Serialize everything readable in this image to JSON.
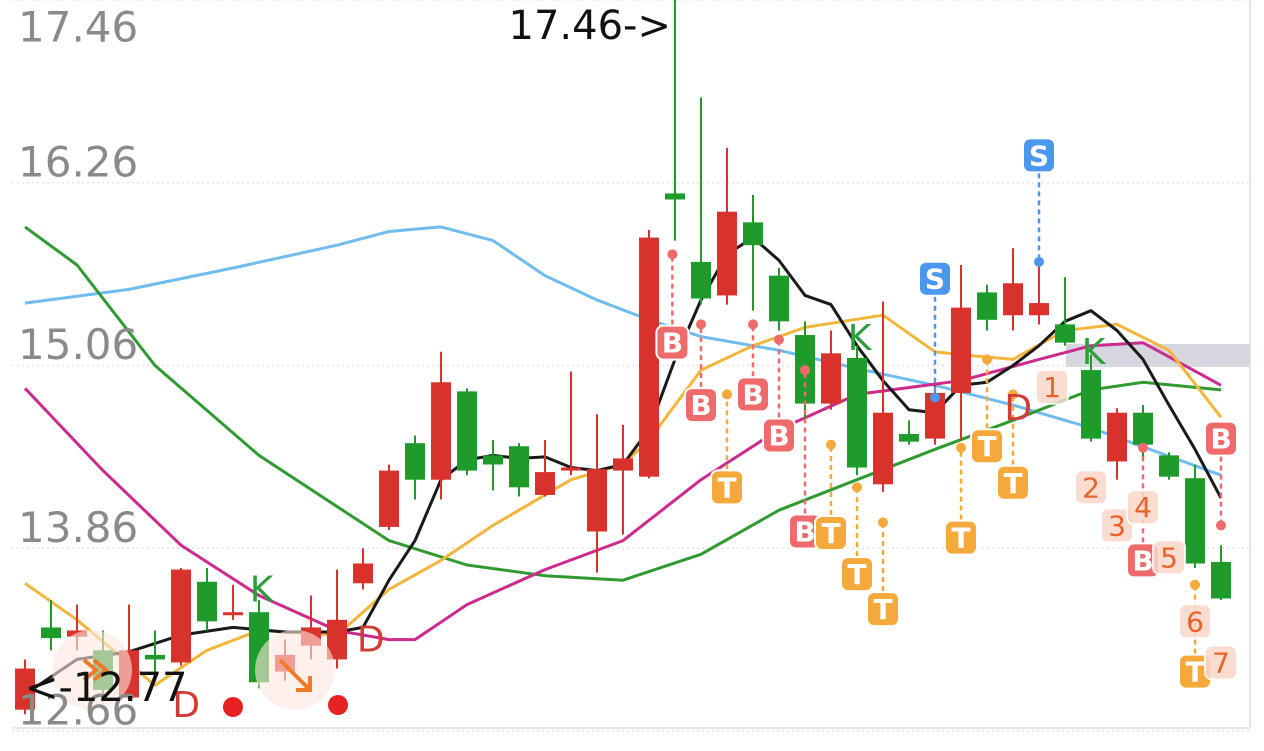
{
  "chart_data": {
    "type": "candlestick",
    "ylim": [
      12.66,
      17.46
    ],
    "yticks": [
      17.46,
      16.26,
      15.06,
      13.86,
      12.66
    ],
    "grid": true,
    "up_color": "#d9312b",
    "down_color": "#1e9b2a",
    "open": [
      12.8,
      13.34,
      13.28,
      13.19,
      12.88,
      13.16,
      13.11,
      13.64,
      13.42,
      13.44,
      13.05,
      13.22,
      13.13,
      13.63,
      14.0,
      14.55,
      14.31,
      14.89,
      14.47,
      14.53,
      14.21,
      14.37,
      13.97,
      14.37,
      14.33,
      16.19,
      15.74,
      15.52,
      16.0,
      15.65,
      15.26,
      14.81,
      15.11,
      14.28,
      14.61,
      14.58,
      14.88,
      15.54,
      15.39,
      15.39,
      15.33,
      15.03,
      14.43,
      14.75,
      14.47,
      14.32,
      13.77
    ],
    "high": [
      13.13,
      13.52,
      13.49,
      13.32,
      13.49,
      13.32,
      13.73,
      13.73,
      13.62,
      13.52,
      13.26,
      13.55,
      13.72,
      13.86,
      14.41,
      14.6,
      15.15,
      14.91,
      14.57,
      14.55,
      14.57,
      15.02,
      14.74,
      14.67,
      15.95,
      17.46,
      16.82,
      16.49,
      16.18,
      15.7,
      15.35,
      15.29,
      15.19,
      15.48,
      14.7,
      14.96,
      15.72,
      15.59,
      15.83,
      15.74,
      15.64,
      15.13,
      14.78,
      14.8,
      14.49,
      14.41,
      13.88
    ],
    "low": [
      12.77,
      13.19,
      13.19,
      12.86,
      12.86,
      12.99,
      13.09,
      13.32,
      13.39,
      12.94,
      12.99,
      13.13,
      13.07,
      13.59,
      13.98,
      14.18,
      14.18,
      14.34,
      14.24,
      14.2,
      14.2,
      14.34,
      13.7,
      13.95,
      14.32,
      15.88,
      15.46,
      15.46,
      15.42,
      15.29,
      14.7,
      14.77,
      14.34,
      14.23,
      14.54,
      14.54,
      14.57,
      15.29,
      15.29,
      15.33,
      15.19,
      14.56,
      14.31,
      14.44,
      14.31,
      13.73,
      13.52
    ],
    "close": [
      13.07,
      13.27,
      13.32,
      12.93,
      13.19,
      13.13,
      13.72,
      13.38,
      13.44,
      12.98,
      13.16,
      13.34,
      13.39,
      13.76,
      14.37,
      14.31,
      14.95,
      14.37,
      14.41,
      14.26,
      14.36,
      14.39,
      14.38,
      14.45,
      15.9,
      16.15,
      15.5,
      16.07,
      15.85,
      15.35,
      14.81,
      15.14,
      14.39,
      14.75,
      14.56,
      14.88,
      15.44,
      15.36,
      15.6,
      15.47,
      15.21,
      14.58,
      14.75,
      14.54,
      14.33,
      13.76,
      13.53
    ],
    "lines": [
      {
        "color": "#6fbdf0",
        "x": [
          0,
          4,
          8,
          12,
          14,
          16,
          18,
          20,
          22,
          24,
          26,
          29,
          32,
          35,
          38,
          41,
          46
        ],
        "values": [
          15.47,
          15.56,
          15.7,
          15.85,
          15.94,
          15.97,
          15.88,
          15.65,
          15.49,
          15.36,
          15.25,
          15.16,
          15.04,
          14.93,
          14.8,
          14.65,
          14.34
        ]
      },
      {
        "color": "#2f9a2f",
        "x": [
          0,
          2,
          5,
          9,
          14,
          17,
          20,
          23,
          26,
          29,
          32,
          35,
          38,
          41,
          43,
          46
        ],
        "values": [
          15.97,
          15.72,
          15.06,
          14.47,
          13.91,
          13.75,
          13.68,
          13.65,
          13.82,
          14.11,
          14.31,
          14.51,
          14.7,
          14.9,
          14.95,
          14.9
        ]
      },
      {
        "color": "#cc2a8e",
        "x": [
          0,
          3,
          6,
          9,
          12,
          14,
          15,
          17,
          20,
          23,
          26,
          29,
          32,
          36,
          39,
          41,
          43,
          46
        ],
        "values": [
          14.91,
          14.37,
          13.88,
          13.55,
          13.32,
          13.26,
          13.26,
          13.49,
          13.72,
          13.91,
          14.31,
          14.64,
          14.87,
          14.96,
          15.1,
          15.19,
          15.21,
          14.93
        ]
      },
      {
        "color": "#f2b63a",
        "x": [
          0,
          2,
          5,
          7,
          9,
          12,
          14,
          16,
          18,
          21,
          23,
          24,
          26,
          28,
          30,
          33,
          35,
          36,
          38,
          40,
          42,
          44,
          46
        ],
        "values": [
          13.63,
          13.39,
          12.96,
          13.19,
          13.32,
          13.29,
          13.59,
          13.78,
          14.01,
          14.31,
          14.41,
          14.57,
          15.03,
          15.19,
          15.31,
          15.39,
          15.15,
          15.13,
          15.1,
          15.29,
          15.33,
          15.16,
          14.72
        ]
      },
      {
        "color": "#1a1a1a",
        "x": [
          0,
          2,
          4,
          6,
          8,
          10,
          12,
          13,
          14,
          15,
          16,
          17,
          18,
          19,
          20,
          21,
          22,
          23,
          24,
          25,
          26,
          27,
          28,
          29,
          30,
          31,
          32,
          33,
          34,
          35,
          36,
          37,
          38,
          39,
          40,
          41,
          42,
          43,
          44,
          45,
          46
        ],
        "values": [
          12.9,
          13.13,
          13.18,
          13.29,
          13.34,
          13.31,
          13.31,
          13.34,
          13.65,
          13.91,
          14.31,
          14.44,
          14.47,
          14.45,
          14.46,
          14.39,
          14.37,
          14.41,
          14.64,
          15.1,
          15.49,
          15.79,
          15.9,
          15.75,
          15.52,
          15.46,
          15.19,
          14.96,
          14.77,
          14.75,
          14.93,
          14.95,
          15.06,
          15.19,
          15.35,
          15.42,
          15.29,
          15.1,
          14.8,
          14.51,
          14.19
        ]
      }
    ],
    "markers": [
      {
        "text": "B",
        "x": 24.9,
        "price": 15.21,
        "stem": 15.79,
        "fill": "#ef6b6b",
        "color": "#ffffff"
      },
      {
        "text": "B",
        "x": 26,
        "price": 14.8,
        "stem": 15.33,
        "fill": "#ef6b6b",
        "color": "#ffffff"
      },
      {
        "text": "B",
        "x": 28,
        "price": 14.87,
        "stem": 15.33,
        "fill": "#ef6b6b",
        "color": "#ffffff"
      },
      {
        "text": "B",
        "x": 29,
        "price": 14.6,
        "stem": 15.23,
        "fill": "#ef6b6b",
        "color": "#ffffff"
      },
      {
        "text": "B",
        "x": 30,
        "price": 13.97,
        "stem": 15.03,
        "fill": "#ef6b6b",
        "color": "#ffffff"
      },
      {
        "text": "T",
        "x": 27,
        "price": 14.26,
        "stem": 14.87,
        "fill": "#f6a93b",
        "color": "#ffffff"
      },
      {
        "text": "T",
        "x": 31,
        "price": 13.96,
        "stem": 14.54,
        "fill": "#f6a93b",
        "color": "#ffffff"
      },
      {
        "text": "T",
        "x": 32,
        "price": 13.69,
        "stem": 14.26,
        "fill": "#f6a93b",
        "color": "#ffffff"
      },
      {
        "text": "T",
        "x": 33,
        "price": 13.46,
        "stem": 14.03,
        "fill": "#f6a93b",
        "color": "#ffffff"
      },
      {
        "text": "T",
        "x": 36,
        "price": 13.93,
        "stem": 14.52,
        "fill": "#f6a93b",
        "color": "#ffffff"
      },
      {
        "text": "T",
        "x": 37,
        "price": 14.53,
        "stem": 15.1,
        "fill": "#f6a93b",
        "color": "#ffffff"
      },
      {
        "text": "T",
        "x": 38,
        "price": 14.29,
        "stem": 14.87,
        "fill": "#f6a93b",
        "color": "#ffffff"
      },
      {
        "text": "T",
        "x": 45,
        "price": 13.05,
        "stem": 13.62,
        "fill": "#f6a93b",
        "color": "#ffffff"
      },
      {
        "text": "S",
        "x": 35,
        "price": 15.63,
        "stem": 14.85,
        "fill": "#4b97f0",
        "color": "#ffffff"
      },
      {
        "text": "S",
        "x": 39,
        "price": 16.44,
        "stem": 15.74,
        "fill": "#4b97f0",
        "color": "#ffffff"
      },
      {
        "text": "B",
        "x": 46,
        "price": 14.58,
        "stem": 14.01,
        "fill": "#ef6b6b",
        "color": "#ffffff"
      },
      {
        "text": "B",
        "x": 43,
        "price": 13.78,
        "stem": 14.52,
        "fill": "#ef6b6b",
        "color": "#ffffff"
      },
      {
        "text": "K",
        "x": 9.1,
        "price": 13.59,
        "color": "#2e9e3a"
      },
      {
        "text": "K",
        "x": 32.1,
        "price": 15.24,
        "color": "#2e9e3a"
      },
      {
        "text": "K",
        "x": 41.1,
        "price": 15.15,
        "color": "#2e9e3a"
      },
      {
        "text": "D",
        "x": 13.3,
        "price": 13.26,
        "color": "#d33b35"
      },
      {
        "text": "D",
        "x": 6.2,
        "price": 12.83,
        "color": "#d33b35"
      },
      {
        "text": "D",
        "x": 38.2,
        "price": 14.78,
        "color": "#d33b35"
      },
      {
        "text": "1",
        "x": 39.5,
        "price": 14.92,
        "fill": "#fbd6c8",
        "color": "#e8622a"
      },
      {
        "text": "2",
        "x": 41,
        "price": 14.26,
        "fill": "#fbd6c8",
        "color": "#e8622a"
      },
      {
        "text": "3",
        "x": 42,
        "price": 14.01,
        "fill": "#fbd6c8",
        "color": "#e8622a"
      },
      {
        "text": "4",
        "x": 43,
        "price": 14.13,
        "fill": "#fbd6c8",
        "color": "#e8622a"
      },
      {
        "text": "5",
        "x": 44,
        "price": 13.8,
        "fill": "#fbd6c8",
        "color": "#e8622a"
      },
      {
        "text": "6",
        "x": 45,
        "price": 13.38,
        "fill": "#fbd6c8",
        "color": "#e8622a"
      },
      {
        "text": "7",
        "x": 46,
        "price": 13.11,
        "fill": "#fbd6c8",
        "color": "#e8622a"
      }
    ],
    "annotations": [
      {
        "text": "17.46->",
        "x": 25,
        "price": 17.46,
        "align": "end"
      },
      {
        "text": "<-12.77",
        "x": 0,
        "price": 12.77,
        "align": "start"
      }
    ]
  }
}
